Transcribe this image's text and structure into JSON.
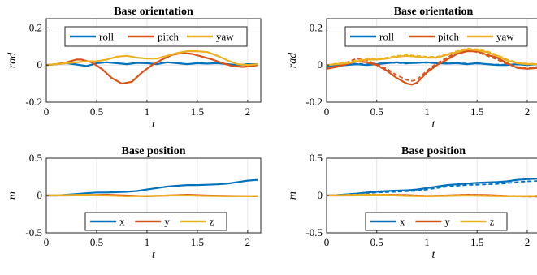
{
  "chart_data": [
    {
      "type": "line",
      "title": "Base orientation",
      "xlabel": "t",
      "ylabel": "rad",
      "xlim": [
        0,
        2.13
      ],
      "ylim": [
        -0.2,
        0.25
      ],
      "xticks": [
        0,
        0.5,
        1,
        1.5,
        2
      ],
      "yticks": [
        -0.2,
        0,
        0.2
      ],
      "xtick_labels": [
        "0",
        "0.5",
        "1",
        "1.5",
        "2"
      ],
      "ytick_labels": [
        "-0.2",
        "0",
        "0.2"
      ],
      "grid": true,
      "legend": {
        "placement": "top",
        "orientation": "horizontal"
      },
      "series": [
        {
          "name": "roll",
          "color": "#0072BD",
          "style": "solid",
          "x": [
            0,
            0.1,
            0.2,
            0.3,
            0.4,
            0.5,
            0.6,
            0.7,
            0.8,
            0.9,
            1.0,
            1.1,
            1.2,
            1.3,
            1.4,
            1.5,
            1.6,
            1.7,
            1.8,
            1.9,
            2.0,
            2.1
          ],
          "y": [
            0,
            0.005,
            0.01,
            0.003,
            -0.005,
            0.01,
            0.015,
            0.01,
            0.005,
            0.012,
            0.01,
            0.005,
            0.015,
            0.01,
            0.005,
            0.01,
            0.008,
            0.01,
            0.005,
            0.0,
            0.005,
            0.005
          ]
        },
        {
          "name": "pitch",
          "color": "#D95319",
          "style": "solid",
          "x": [
            0,
            0.1,
            0.2,
            0.3,
            0.35,
            0.45,
            0.55,
            0.65,
            0.75,
            0.85,
            0.95,
            1.05,
            1.15,
            1.25,
            1.35,
            1.45,
            1.55,
            1.65,
            1.75,
            1.85,
            1.95,
            2.05,
            2.1
          ],
          "y": [
            0,
            0.005,
            0.015,
            0.03,
            0.03,
            0.015,
            -0.02,
            -0.07,
            -0.1,
            -0.09,
            -0.04,
            0.0,
            0.03,
            0.055,
            0.065,
            0.06,
            0.045,
            0.03,
            0.01,
            -0.005,
            -0.01,
            -0.005,
            0.0
          ]
        },
        {
          "name": "yaw",
          "color": "#EDB120",
          "style": "solid",
          "x": [
            0,
            0.1,
            0.2,
            0.3,
            0.4,
            0.5,
            0.6,
            0.7,
            0.8,
            0.9,
            1.0,
            1.1,
            1.2,
            1.3,
            1.4,
            1.5,
            1.6,
            1.7,
            1.8,
            1.9,
            2.0,
            2.1
          ],
          "y": [
            0,
            0.005,
            0.01,
            0.015,
            0.02,
            0.02,
            0.03,
            0.045,
            0.05,
            0.04,
            0.035,
            0.035,
            0.05,
            0.065,
            0.075,
            0.075,
            0.07,
            0.05,
            0.025,
            0.005,
            0.0,
            0.005
          ]
        }
      ]
    },
    {
      "type": "line",
      "title": "Base orientation",
      "xlabel": "t",
      "ylabel": "rad",
      "xlim": [
        0,
        2.13
      ],
      "ylim": [
        -0.2,
        0.25
      ],
      "xticks": [
        0,
        0.5,
        1,
        1.5,
        2
      ],
      "yticks": [
        -0.2,
        0,
        0.2
      ],
      "xtick_labels": [
        "0",
        "0.5",
        "1",
        "1.5",
        "2"
      ],
      "ytick_labels": [
        "-0.2",
        "0",
        "0.2"
      ],
      "grid": true,
      "legend": {
        "placement": "top",
        "orientation": "horizontal"
      },
      "series": [
        {
          "name": "roll",
          "color": "#0072BD",
          "style": "solid",
          "x": [
            0,
            0.1,
            0.2,
            0.3,
            0.4,
            0.5,
            0.6,
            0.7,
            0.8,
            0.9,
            1.0,
            1.1,
            1.2,
            1.3,
            1.4,
            1.5,
            1.6,
            1.7,
            1.8,
            1.9,
            2.0,
            2.1
          ],
          "y": [
            -0.01,
            -0.005,
            0.0,
            0.005,
            0.0,
            0.005,
            0.01,
            0.015,
            0.01,
            0.012,
            0.015,
            0.01,
            0.008,
            0.01,
            0.005,
            0.01,
            0.005,
            0.0,
            0.0,
            0.005,
            0.0,
            0.005
          ]
        },
        {
          "color": "#0072BD",
          "style": "dashed",
          "x": [
            0,
            0.1,
            0.2,
            0.3,
            0.4,
            0.5,
            0.6,
            0.7,
            0.8,
            0.9,
            1.0,
            1.1,
            1.2,
            1.3,
            1.4,
            1.5,
            1.6,
            1.7,
            1.8,
            1.9,
            2.0,
            2.1
          ],
          "y": [
            -0.005,
            0.0,
            0.003,
            0.008,
            0.004,
            0.008,
            0.012,
            0.012,
            0.008,
            0.015,
            0.012,
            0.01,
            0.01,
            0.012,
            0.008,
            0.008,
            0.005,
            0.003,
            0.002,
            0.004,
            0.003,
            0.004
          ]
        },
        {
          "name": "pitch",
          "color": "#D95319",
          "style": "solid",
          "x": [
            0,
            0.1,
            0.2,
            0.3,
            0.4,
            0.5,
            0.6,
            0.7,
            0.8,
            0.85,
            0.9,
            1.0,
            1.1,
            1.2,
            1.3,
            1.4,
            1.5,
            1.6,
            1.7,
            1.8,
            1.9,
            2.0,
            2.1
          ],
          "y": [
            -0.02,
            -0.01,
            0.005,
            0.02,
            0.015,
            0.0,
            -0.03,
            -0.07,
            -0.1,
            -0.105,
            -0.095,
            -0.04,
            0.0,
            0.03,
            0.06,
            0.075,
            0.075,
            0.055,
            0.04,
            0.01,
            -0.015,
            -0.02,
            -0.015
          ]
        },
        {
          "color": "#D95319",
          "style": "dashed",
          "x": [
            0,
            0.1,
            0.2,
            0.3,
            0.4,
            0.5,
            0.6,
            0.7,
            0.8,
            0.85,
            0.9,
            1.0,
            1.1,
            1.2,
            1.3,
            1.4,
            1.5,
            1.6,
            1.7,
            1.8,
            1.9,
            2.0,
            2.1
          ],
          "y": [
            -0.015,
            -0.005,
            0.015,
            0.035,
            0.025,
            0.005,
            -0.02,
            -0.055,
            -0.08,
            -0.085,
            -0.08,
            -0.03,
            0.01,
            0.04,
            0.07,
            0.08,
            0.07,
            0.05,
            0.03,
            0.005,
            -0.01,
            -0.015,
            -0.01
          ]
        },
        {
          "name": "yaw",
          "color": "#EDB120",
          "style": "solid",
          "x": [
            0,
            0.1,
            0.2,
            0.3,
            0.4,
            0.5,
            0.6,
            0.7,
            0.8,
            0.9,
            1.0,
            1.1,
            1.2,
            1.3,
            1.4,
            1.5,
            1.6,
            1.7,
            1.8,
            1.9,
            2.0,
            2.1
          ],
          "y": [
            0.0,
            0.005,
            0.01,
            0.02,
            0.03,
            0.03,
            0.035,
            0.045,
            0.05,
            0.045,
            0.04,
            0.04,
            0.055,
            0.07,
            0.085,
            0.08,
            0.07,
            0.05,
            0.025,
            0.01,
            0.005,
            0.005
          ]
        },
        {
          "color": "#EDB120",
          "style": "dashed",
          "x": [
            0,
            0.1,
            0.2,
            0.3,
            0.4,
            0.5,
            0.6,
            0.7,
            0.8,
            0.9,
            1.0,
            1.1,
            1.2,
            1.3,
            1.4,
            1.5,
            1.6,
            1.7,
            1.8,
            1.9,
            2.0,
            2.1
          ],
          "y": [
            0.0,
            0.008,
            0.015,
            0.025,
            0.035,
            0.035,
            0.04,
            0.05,
            0.055,
            0.05,
            0.045,
            0.045,
            0.06,
            0.075,
            0.09,
            0.085,
            0.075,
            0.055,
            0.03,
            0.015,
            0.008,
            0.008
          ]
        }
      ]
    },
    {
      "type": "line",
      "title": "Base position",
      "xlabel": "t",
      "ylabel": "m",
      "xlim": [
        0,
        2.13
      ],
      "ylim": [
        -0.5,
        0.5
      ],
      "xticks": [
        0,
        0.5,
        1,
        1.5,
        2
      ],
      "yticks": [
        -0.5,
        0,
        0.5
      ],
      "xtick_labels": [
        "0",
        "0.5",
        "1",
        "1.5",
        "2"
      ],
      "ytick_labels": [
        "-0.5",
        "0",
        "0.5"
      ],
      "grid": true,
      "legend": {
        "placement": "bottom",
        "orientation": "horizontal"
      },
      "series": [
        {
          "name": "x",
          "color": "#0072BD",
          "style": "solid",
          "x": [
            0,
            0.1,
            0.2,
            0.3,
            0.4,
            0.5,
            0.6,
            0.7,
            0.8,
            0.9,
            1.0,
            1.1,
            1.2,
            1.3,
            1.4,
            1.5,
            1.6,
            1.7,
            1.8,
            1.9,
            2.0,
            2.1
          ],
          "y": [
            0.0,
            0.0,
            0.01,
            0.02,
            0.03,
            0.04,
            0.04,
            0.045,
            0.05,
            0.06,
            0.08,
            0.1,
            0.12,
            0.13,
            0.14,
            0.14,
            0.145,
            0.15,
            0.16,
            0.18,
            0.2,
            0.21
          ]
        },
        {
          "name": "y",
          "color": "#D95319",
          "style": "solid",
          "x": [
            0,
            0.2,
            0.4,
            0.6,
            0.8,
            1.0,
            1.2,
            1.4,
            1.6,
            1.8,
            2.0,
            2.1
          ],
          "y": [
            0.0,
            0.0,
            0.005,
            0.01,
            0.0,
            -0.01,
            0.0,
            0.01,
            0.0,
            -0.005,
            -0.01,
            -0.01
          ]
        },
        {
          "name": "z",
          "color": "#EDB120",
          "style": "solid",
          "x": [
            0,
            0.2,
            0.4,
            0.6,
            0.8,
            1.0,
            1.2,
            1.4,
            1.6,
            1.8,
            2.0,
            2.1
          ],
          "y": [
            0.0,
            0.005,
            0.01,
            0.0,
            -0.01,
            -0.005,
            0.0,
            0.0,
            -0.005,
            -0.01,
            -0.01,
            -0.005
          ]
        }
      ]
    },
    {
      "type": "line",
      "title": "Base position",
      "xlabel": "t",
      "ylabel": "m",
      "xlim": [
        0,
        2.13
      ],
      "ylim": [
        -0.5,
        0.5
      ],
      "xticks": [
        0,
        0.5,
        1,
        1.5,
        2
      ],
      "yticks": [
        -0.5,
        0,
        0.5
      ],
      "xtick_labels": [
        "0",
        "0.5",
        "1",
        "1.5",
        "2"
      ],
      "ytick_labels": [
        "-0.5",
        "0",
        "0.5"
      ],
      "grid": true,
      "legend": {
        "placement": "bottom",
        "orientation": "horizontal"
      },
      "series": [
        {
          "name": "x",
          "color": "#0072BD",
          "style": "solid",
          "x": [
            0,
            0.1,
            0.2,
            0.3,
            0.4,
            0.5,
            0.6,
            0.7,
            0.8,
            0.9,
            1.0,
            1.1,
            1.2,
            1.3,
            1.4,
            1.5,
            1.6,
            1.7,
            1.8,
            1.9,
            2.0,
            2.1
          ],
          "y": [
            0.0,
            0.005,
            0.015,
            0.025,
            0.04,
            0.05,
            0.06,
            0.065,
            0.07,
            0.08,
            0.1,
            0.12,
            0.14,
            0.15,
            0.16,
            0.17,
            0.175,
            0.18,
            0.19,
            0.21,
            0.22,
            0.225
          ]
        },
        {
          "color": "#0072BD",
          "style": "dashed",
          "x": [
            0,
            0.1,
            0.2,
            0.3,
            0.4,
            0.5,
            0.6,
            0.7,
            0.8,
            0.9,
            1.0,
            1.1,
            1.2,
            1.3,
            1.4,
            1.5,
            1.6,
            1.7,
            1.8,
            1.9,
            2.0,
            2.1
          ],
          "y": [
            0.0,
            0.0,
            0.01,
            0.02,
            0.03,
            0.04,
            0.045,
            0.05,
            0.055,
            0.065,
            0.08,
            0.1,
            0.12,
            0.13,
            0.14,
            0.145,
            0.15,
            0.155,
            0.165,
            0.18,
            0.19,
            0.195
          ]
        },
        {
          "name": "y",
          "color": "#D95319",
          "style": "solid",
          "x": [
            0,
            0.2,
            0.4,
            0.6,
            0.8,
            1.0,
            1.2,
            1.4,
            1.6,
            1.8,
            2.0,
            2.1
          ],
          "y": [
            0.0,
            0.0,
            0.005,
            0.01,
            0.005,
            -0.005,
            0.0,
            0.01,
            0.005,
            -0.005,
            -0.01,
            -0.01
          ]
        },
        {
          "color": "#D95319",
          "style": "dashed",
          "x": [
            0,
            0.2,
            0.4,
            0.6,
            0.8,
            1.0,
            1.2,
            1.4,
            1.6,
            1.8,
            2.0,
            2.1
          ],
          "y": [
            0.0,
            0.005,
            0.01,
            0.005,
            0.0,
            -0.01,
            -0.005,
            0.005,
            0.0,
            -0.01,
            -0.015,
            -0.015
          ]
        },
        {
          "name": "z",
          "color": "#EDB120",
          "style": "solid",
          "x": [
            0,
            0.2,
            0.4,
            0.6,
            0.8,
            1.0,
            1.2,
            1.4,
            1.6,
            1.8,
            2.0,
            2.1
          ],
          "y": [
            0.0,
            0.005,
            0.01,
            0.005,
            -0.005,
            -0.01,
            -0.005,
            0.0,
            -0.005,
            -0.01,
            -0.01,
            -0.005
          ]
        },
        {
          "color": "#EDB120",
          "style": "dashed",
          "x": [
            0,
            0.2,
            0.4,
            0.6,
            0.8,
            1.0,
            1.2,
            1.4,
            1.6,
            1.8,
            2.0,
            2.1
          ],
          "y": [
            0.0,
            0.01,
            0.015,
            0.01,
            0.0,
            -0.005,
            0.0,
            0.005,
            0.0,
            -0.005,
            -0.005,
            0.0
          ]
        }
      ]
    }
  ]
}
